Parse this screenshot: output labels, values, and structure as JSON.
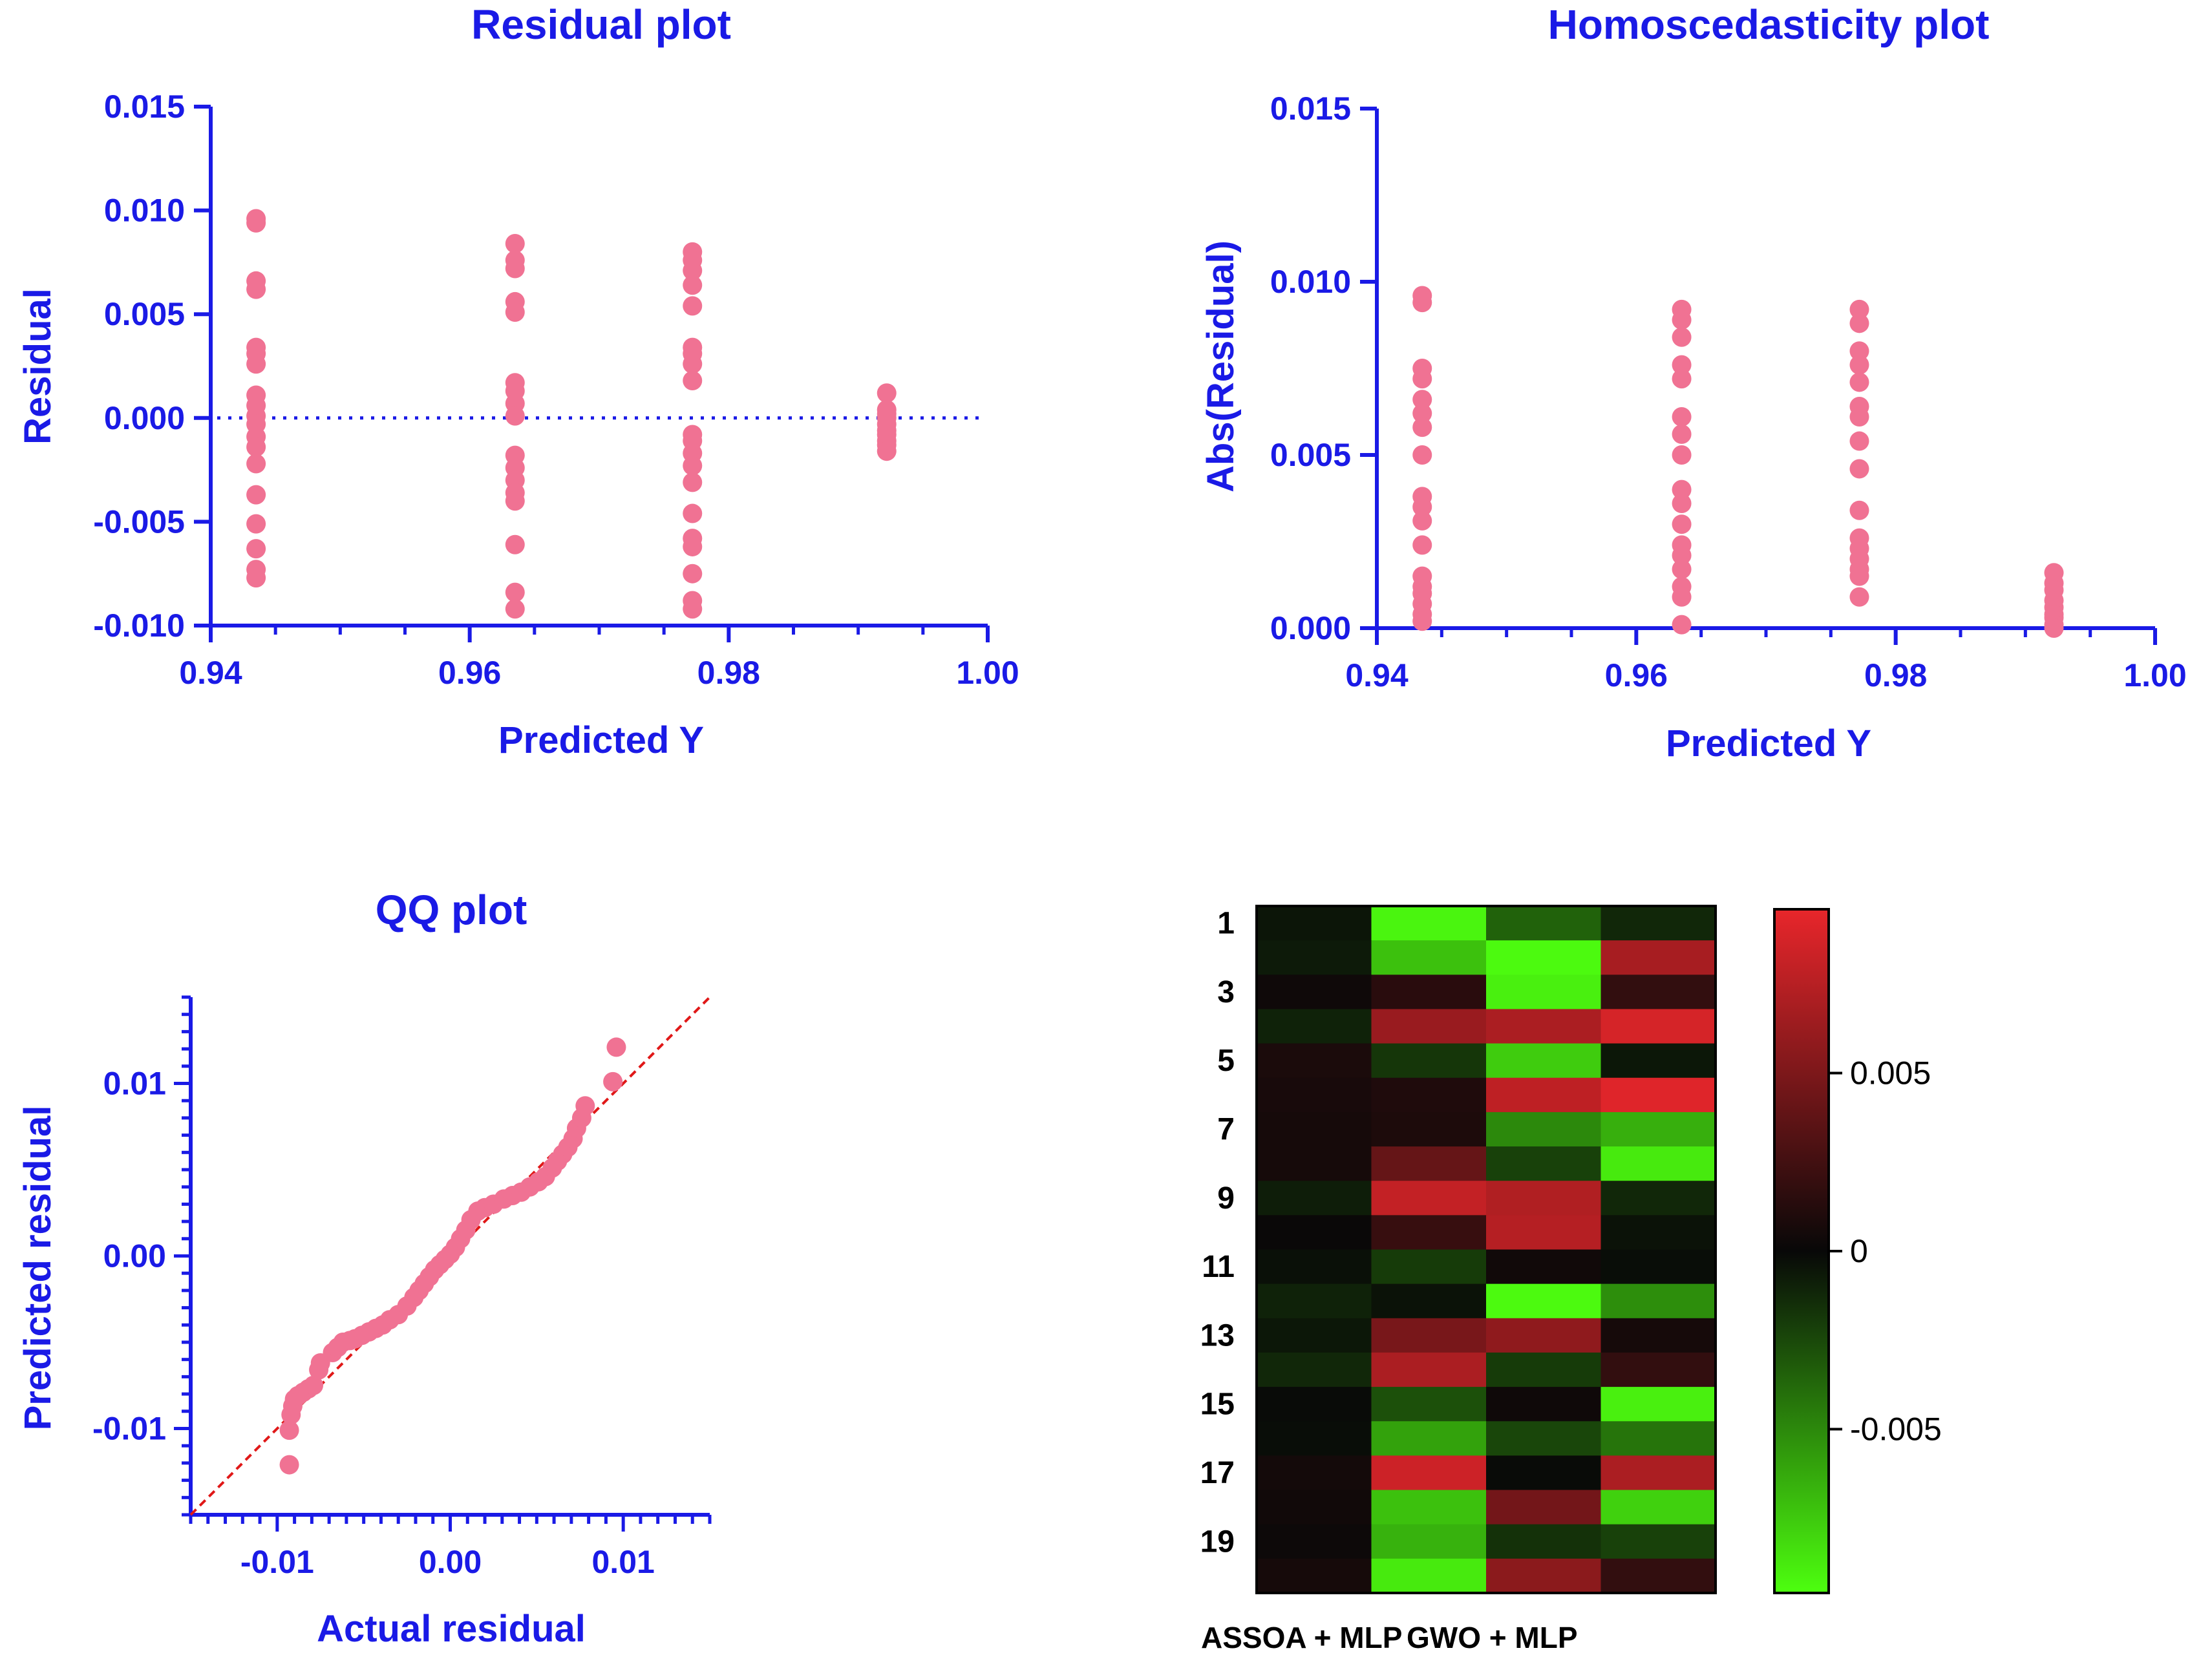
{
  "colors": {
    "axis": "#1a1ae6",
    "point": "#f07293",
    "refline": "#e01818",
    "cb_top": "#e8262b",
    "cb_mid": "#080808",
    "cb_bottom": "#4dff0f"
  },
  "chart_data": [
    {
      "type": "scatter",
      "title": "Residual plot",
      "xlabel": "Predicted Y",
      "ylabel": "Residual",
      "xlim": [
        0.94,
        1.0
      ],
      "ylim": [
        -0.01,
        0.015
      ],
      "xticks": [
        "0.94",
        "0.96",
        "0.98",
        "1.00"
      ],
      "yticks": [
        "-0.010",
        "-0.005",
        "0.000",
        "0.005",
        "0.010",
        "0.015"
      ],
      "reference_line": {
        "y": 0,
        "style": "dotted"
      },
      "groups": [
        {
          "x": 0.9435,
          "y": [
            0.0096,
            0.0094,
            0.0066,
            0.0062,
            0.0034,
            0.0031,
            0.0026,
            0.0011,
            0.0006,
            0.0001,
            -0.0003,
            -0.0009,
            -0.0014,
            -0.0022,
            -0.0037,
            -0.0051,
            -0.0063,
            -0.0073,
            -0.0077
          ]
        },
        {
          "x": 0.9635,
          "y": [
            0.0084,
            0.0076,
            0.0072,
            0.0056,
            0.0051,
            0.0017,
            0.0013,
            0.0007,
            0.0001,
            -0.0018,
            -0.0024,
            -0.003,
            -0.0036,
            -0.004,
            -0.0061,
            -0.0084,
            -0.0092
          ]
        },
        {
          "x": 0.9772,
          "y": [
            0.008,
            0.0076,
            0.0071,
            0.0064,
            0.0054,
            0.0034,
            0.0031,
            0.0026,
            0.0018,
            -0.0008,
            -0.0011,
            -0.0017,
            -0.0023,
            -0.0031,
            -0.0046,
            -0.0058,
            -0.0062,
            -0.0075,
            -0.0088,
            -0.0092
          ]
        },
        {
          "x": 0.9922,
          "y": [
            0.0012,
            0.0004,
            0.0002,
            0.0,
            -0.0003,
            -0.0006,
            -0.0008,
            -0.0011,
            -0.0013,
            -0.0016
          ]
        }
      ]
    },
    {
      "type": "scatter",
      "title": "Homoscedasticity plot",
      "xlabel": "Predicted Y",
      "ylabel": "Abs(Residual)",
      "xlim": [
        0.94,
        1.0
      ],
      "ylim": [
        0,
        0.015
      ],
      "xticks": [
        "0.94",
        "0.96",
        "0.98",
        "1.00"
      ],
      "yticks": [
        "0.000",
        "0.005",
        "0.010",
        "0.015"
      ],
      "groups": [
        {
          "x": 0.9435,
          "y": [
            0.0096,
            0.0094,
            0.0075,
            0.0072,
            0.0066,
            0.0062,
            0.0058,
            0.005,
            0.0038,
            0.0035,
            0.0031,
            0.0024,
            0.0015,
            0.0012,
            0.001,
            0.0007,
            0.0004,
            0.0002
          ]
        },
        {
          "x": 0.9635,
          "y": [
            0.0092,
            0.0089,
            0.0084,
            0.0076,
            0.0072,
            0.0061,
            0.0056,
            0.005,
            0.004,
            0.0036,
            0.003,
            0.0024,
            0.0021,
            0.0017,
            0.0012,
            0.0009,
            0.0001
          ]
        },
        {
          "x": 0.9772,
          "y": [
            0.0092,
            0.0088,
            0.008,
            0.0076,
            0.0071,
            0.0064,
            0.0061,
            0.0054,
            0.0046,
            0.0034,
            0.0026,
            0.0023,
            0.002,
            0.0017,
            0.0015,
            0.0009
          ]
        },
        {
          "x": 0.9922,
          "y": [
            0.0016,
            0.0013,
            0.0011,
            0.0008,
            0.0006,
            0.0004,
            0.0003,
            0.0001,
            0.0
          ]
        }
      ]
    },
    {
      "type": "scatter",
      "title": "QQ plot",
      "xlabel": "Actual residual",
      "ylabel": "Predicted residual",
      "xlim": [
        -0.015,
        0.015
      ],
      "ylim": [
        -0.015,
        0.015
      ],
      "xticks": [
        "-0.01",
        "0.00",
        "0.01"
      ],
      "yticks": [
        "-0.01",
        "0.00",
        "0.01"
      ],
      "reference_line": {
        "slope": 1,
        "intercept": 0,
        "style": "dashed"
      },
      "points": [
        [
          -0.0093,
          -0.0121
        ],
        [
          -0.0093,
          -0.0101
        ],
        [
          -0.0092,
          -0.0092
        ],
        [
          -0.0091,
          -0.0087
        ],
        [
          -0.009,
          -0.0083
        ],
        [
          -0.0088,
          -0.0081
        ],
        [
          -0.0085,
          -0.0079
        ],
        [
          -0.0082,
          -0.0077
        ],
        [
          -0.0079,
          -0.0075
        ],
        [
          -0.0076,
          -0.0066
        ],
        [
          -0.0075,
          -0.0062
        ],
        [
          -0.0068,
          -0.0056
        ],
        [
          -0.0065,
          -0.0053
        ],
        [
          -0.0062,
          -0.005
        ],
        [
          -0.0058,
          -0.0049
        ],
        [
          -0.0055,
          -0.0048
        ],
        [
          -0.0051,
          -0.0046
        ],
        [
          -0.0047,
          -0.0044
        ],
        [
          -0.0043,
          -0.0042
        ],
        [
          -0.0039,
          -0.004
        ],
        [
          -0.0035,
          -0.0037
        ],
        [
          -0.003,
          -0.0034
        ],
        [
          -0.0025,
          -0.0029
        ],
        [
          -0.0021,
          -0.0024
        ],
        [
          -0.0018,
          -0.002
        ],
        [
          -0.0015,
          -0.0016
        ],
        [
          -0.0012,
          -0.0012
        ],
        [
          -0.0009,
          -0.0008
        ],
        [
          -0.0006,
          -0.0005
        ],
        [
          -0.0003,
          -0.0002
        ],
        [
          0.0,
          0.0001
        ],
        [
          0.0003,
          0.0005
        ],
        [
          0.0006,
          0.001
        ],
        [
          0.0009,
          0.0015
        ],
        [
          0.0012,
          0.0021
        ],
        [
          0.0016,
          0.0026
        ],
        [
          0.002,
          0.0028
        ],
        [
          0.0025,
          0.003
        ],
        [
          0.0031,
          0.0033
        ],
        [
          0.0036,
          0.0035
        ],
        [
          0.0041,
          0.0037
        ],
        [
          0.0046,
          0.004
        ],
        [
          0.0051,
          0.0043
        ],
        [
          0.0055,
          0.0046
        ],
        [
          0.0059,
          0.0051
        ],
        [
          0.0062,
          0.0055
        ],
        [
          0.0065,
          0.0059
        ],
        [
          0.0068,
          0.0063
        ],
        [
          0.0071,
          0.0068
        ],
        [
          0.0073,
          0.0074
        ],
        [
          0.0076,
          0.008
        ],
        [
          0.0078,
          0.0087
        ],
        [
          0.0094,
          0.0101
        ],
        [
          0.0096,
          0.0121
        ]
      ]
    },
    {
      "type": "heatmap",
      "columns": [
        "ASSOA + MLP",
        "GWO + MLP"
      ],
      "row_labels": [
        "1",
        "3",
        "5",
        "7",
        "9",
        "11",
        "13",
        "15",
        "17",
        "19"
      ],
      "colorbar_ticks": [
        "0.005",
        "0",
        "-0.005"
      ],
      "colorbar_range": [
        -0.0096,
        0.0096
      ],
      "values": [
        [
          -0.0005,
          -0.0092,
          -0.0035,
          -0.0012
        ],
        [
          -0.0007,
          -0.0072,
          -0.0094,
          0.0068
        ],
        [
          0.0003,
          0.0014,
          -0.009,
          0.0018
        ],
        [
          -0.001,
          0.0062,
          0.007,
          0.0088
        ],
        [
          0.0008,
          -0.0018,
          -0.0076,
          -0.0006
        ],
        [
          0.0007,
          0.001,
          0.0078,
          0.0092
        ],
        [
          0.0006,
          0.0009,
          -0.005,
          -0.0065
        ],
        [
          0.0006,
          0.004,
          -0.0022,
          -0.0088
        ],
        [
          -0.0008,
          0.008,
          0.0072,
          -0.0012
        ],
        [
          0.0001,
          0.002,
          0.0074,
          -0.0004
        ],
        [
          -0.0003,
          -0.002,
          0.0004,
          -0.0002
        ],
        [
          -0.001,
          -0.0004,
          -0.0094,
          -0.0052
        ],
        [
          -0.0006,
          0.0048,
          0.0058,
          0.0006
        ],
        [
          -0.0012,
          0.007,
          -0.002,
          0.0018
        ],
        [
          -0.0001,
          -0.0028,
          0.0003,
          -0.009
        ],
        [
          -0.0002,
          -0.006,
          -0.0024,
          -0.0042
        ],
        [
          0.0005,
          0.0084,
          -0.0001,
          0.007
        ],
        [
          0.0004,
          -0.0072,
          0.0046,
          -0.0078
        ],
        [
          0.0002,
          -0.0066,
          -0.0016,
          -0.0022
        ],
        [
          0.0006,
          -0.0088,
          0.0056,
          0.0018
        ]
      ]
    }
  ]
}
